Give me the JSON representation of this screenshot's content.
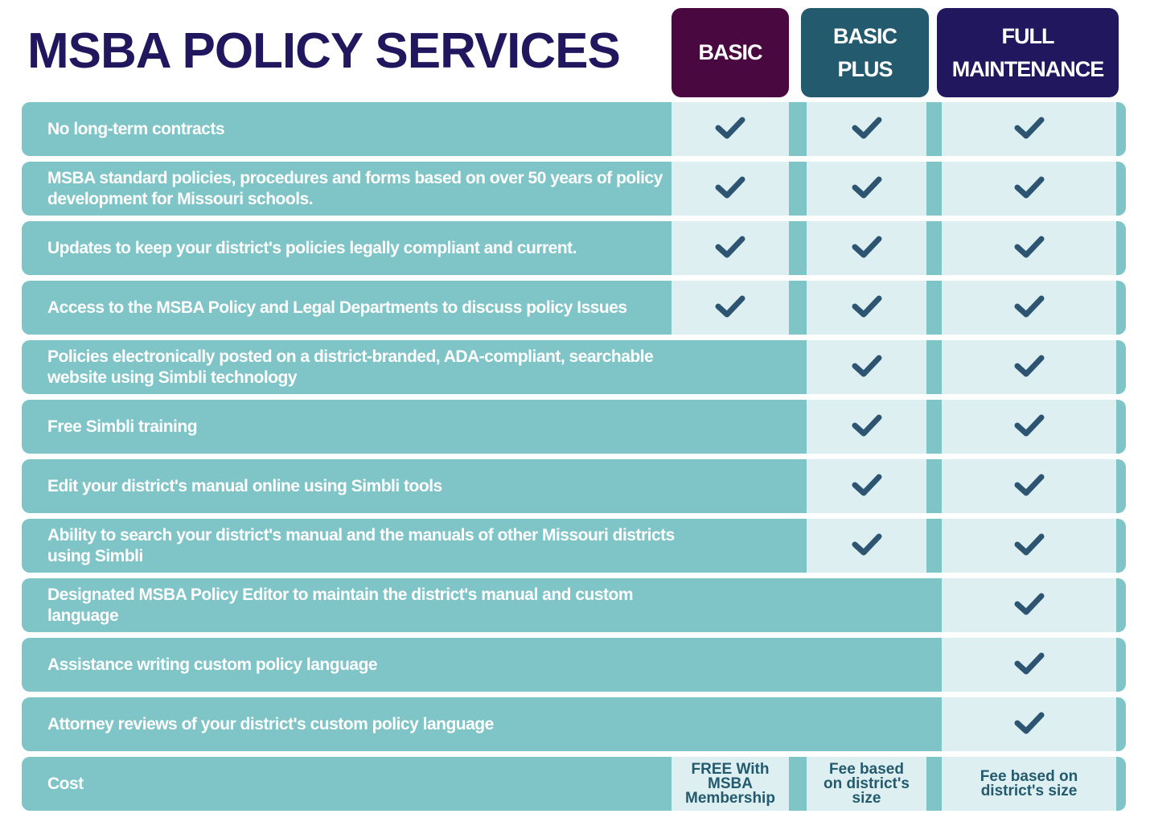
{
  "title": "MSBA POLICY SERVICES",
  "tiers": [
    {
      "label": "BASIC",
      "color": "#4a0840"
    },
    {
      "label": "BASIC PLUS",
      "color": "#245a6e"
    },
    {
      "label": "FULL MAINTENANCE",
      "color": "#21175e"
    }
  ],
  "colors": {
    "row": "#7fc4c7",
    "cell": "#ddeff1",
    "check": "#2d5571"
  },
  "features": [
    {
      "label": "No long-term contracts",
      "included": [
        true,
        true,
        true
      ]
    },
    {
      "label": "MSBA standard policies, procedures and forms based on over 50 years of policy development for Missouri schools.",
      "included": [
        true,
        true,
        true
      ]
    },
    {
      "label": "Updates to keep your district's policies legally compliant and current.",
      "included": [
        true,
        true,
        true
      ]
    },
    {
      "label": "Access to the MSBA Policy and Legal Departments to discuss policy Issues",
      "included": [
        true,
        true,
        true
      ]
    },
    {
      "label": "Policies electronically posted on a district-branded, ADA-compliant, searchable website using Simbli technology",
      "included": [
        false,
        true,
        true
      ]
    },
    {
      "label": "Free Simbli training",
      "included": [
        false,
        true,
        true
      ]
    },
    {
      "label": "Edit your district's manual online using Simbli tools",
      "included": [
        false,
        true,
        true
      ]
    },
    {
      "label": "Ability to search your district's manual and the manuals of other Missouri districts using Simbli",
      "included": [
        false,
        true,
        true
      ]
    },
    {
      "label": "Designated MSBA Policy Editor to maintain the district's manual and custom language",
      "included": [
        false,
        false,
        true
      ]
    },
    {
      "label": "Assistance writing custom policy  language",
      "included": [
        false,
        false,
        true
      ]
    },
    {
      "label": "Attorney reviews of your district's custom policy language",
      "included": [
        false,
        false,
        true
      ]
    }
  ],
  "cost": {
    "label": "Cost",
    "values": [
      "FREE With MSBA Membership",
      "Fee based on district's size",
      "Fee based on district's size"
    ]
  }
}
